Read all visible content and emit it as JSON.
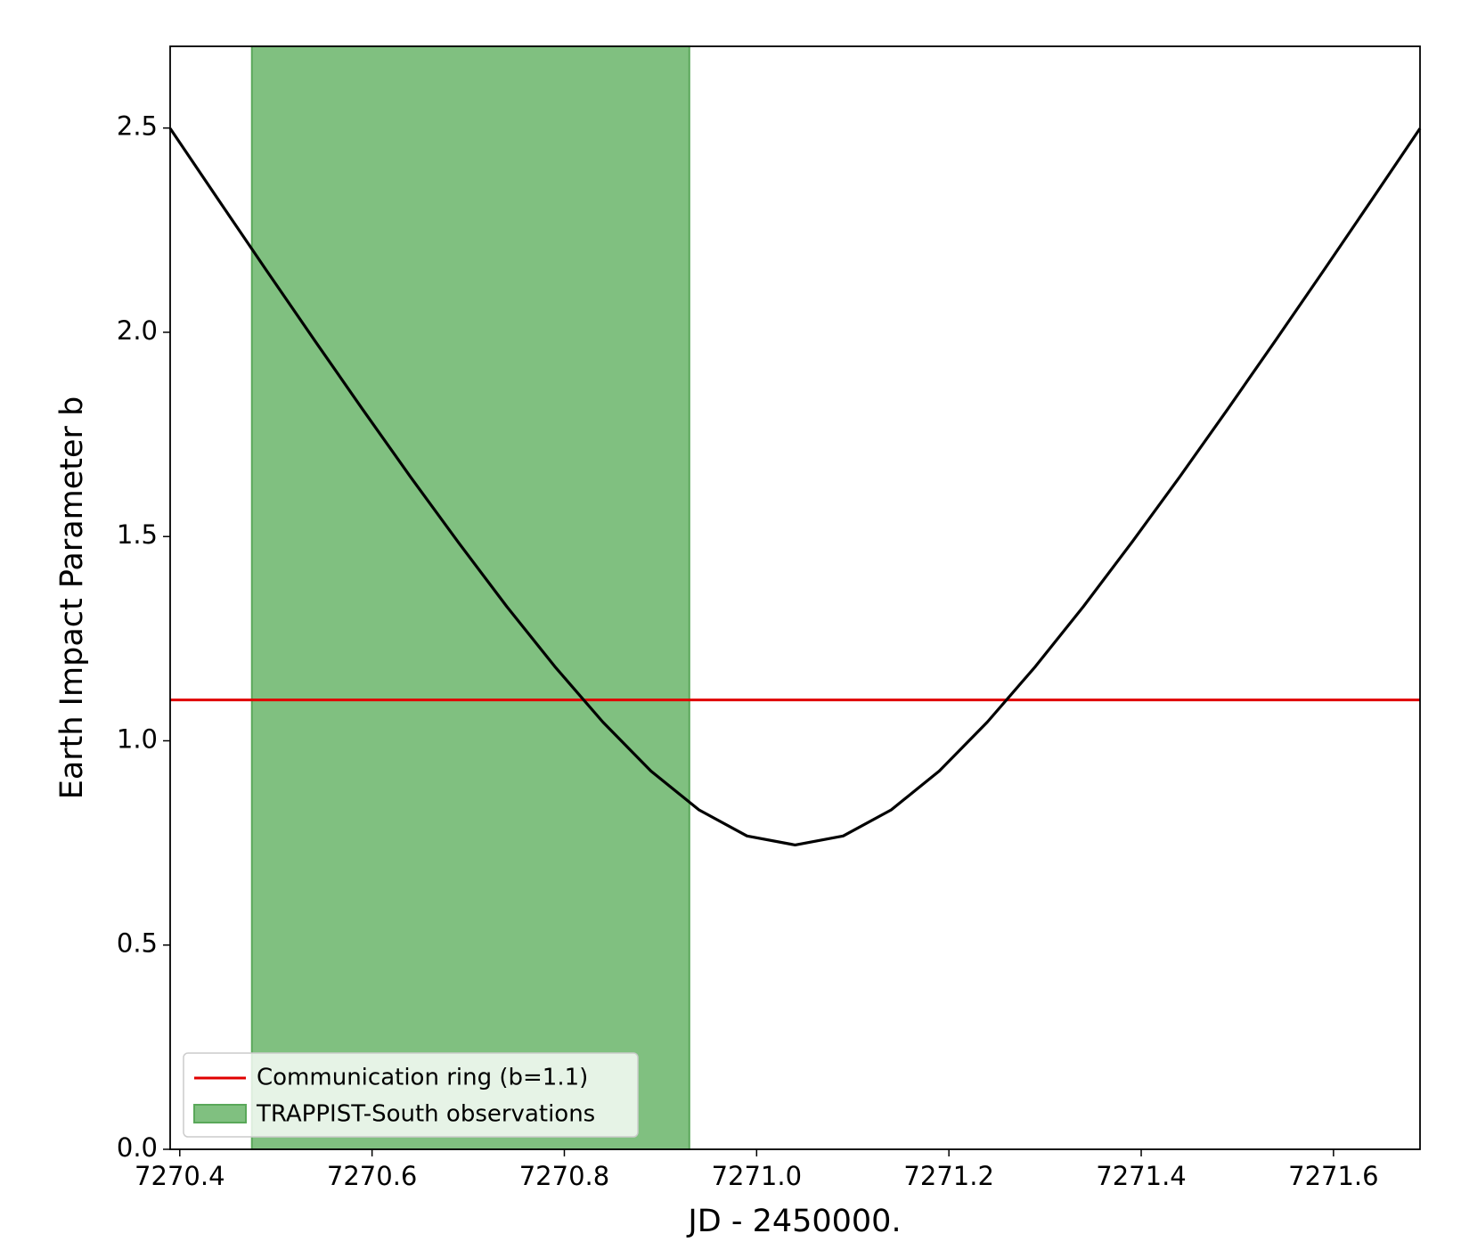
{
  "chart_data": {
    "type": "line",
    "xlabel": "JD - 2450000.",
    "ylabel": "Earth Impact Parameter b",
    "xlim": [
      7270.39,
      7271.69
    ],
    "ylim": [
      0,
      2.7
    ],
    "xticks": [
      7270.4,
      7270.6,
      7270.8,
      {
        "value": 7271.0,
        "label": "7271.0"
      },
      7271.2,
      7271.4,
      7271.6
    ],
    "yticks": [
      {
        "value": 0,
        "label": "0.0"
      },
      0.5,
      {
        "value": 1,
        "label": "1.0"
      },
      1.5,
      {
        "value": 2,
        "label": "2.0"
      },
      2.5
    ],
    "x": [
      7270.39,
      7270.44,
      7270.49,
      7270.54,
      7270.59,
      7270.64,
      7270.69,
      7270.74,
      7270.79,
      7270.84,
      7270.89,
      7270.94,
      7270.99,
      7271.04,
      7271.09,
      7271.14,
      7271.19,
      7271.24,
      7271.29,
      7271.34,
      7271.39,
      7271.44,
      7271.49,
      7271.54,
      7271.59,
      7271.64,
      7271.69
    ],
    "series": [
      {
        "color": "#000000",
        "values": [
          2.499,
          2.325,
          2.152,
          1.981,
          1.812,
          1.646,
          1.485,
          1.329,
          1.182,
          1.046,
          0.926,
          0.831,
          0.767,
          0.745,
          0.767,
          0.831,
          0.926,
          1.046,
          1.182,
          1.329,
          1.485,
          1.646,
          1.812,
          1.981,
          2.152,
          2.325,
          2.499
        ]
      }
    ],
    "hline": {
      "name": "Communication ring (b=1.1)",
      "value": 1.1,
      "color": "#e00000"
    },
    "span": {
      "name": "TRAPPIST-South observations",
      "x": [
        7270.475,
        7270.93
      ],
      "color": "#80c080",
      "edge": "#5aa85a"
    },
    "legend": "lower left"
  }
}
